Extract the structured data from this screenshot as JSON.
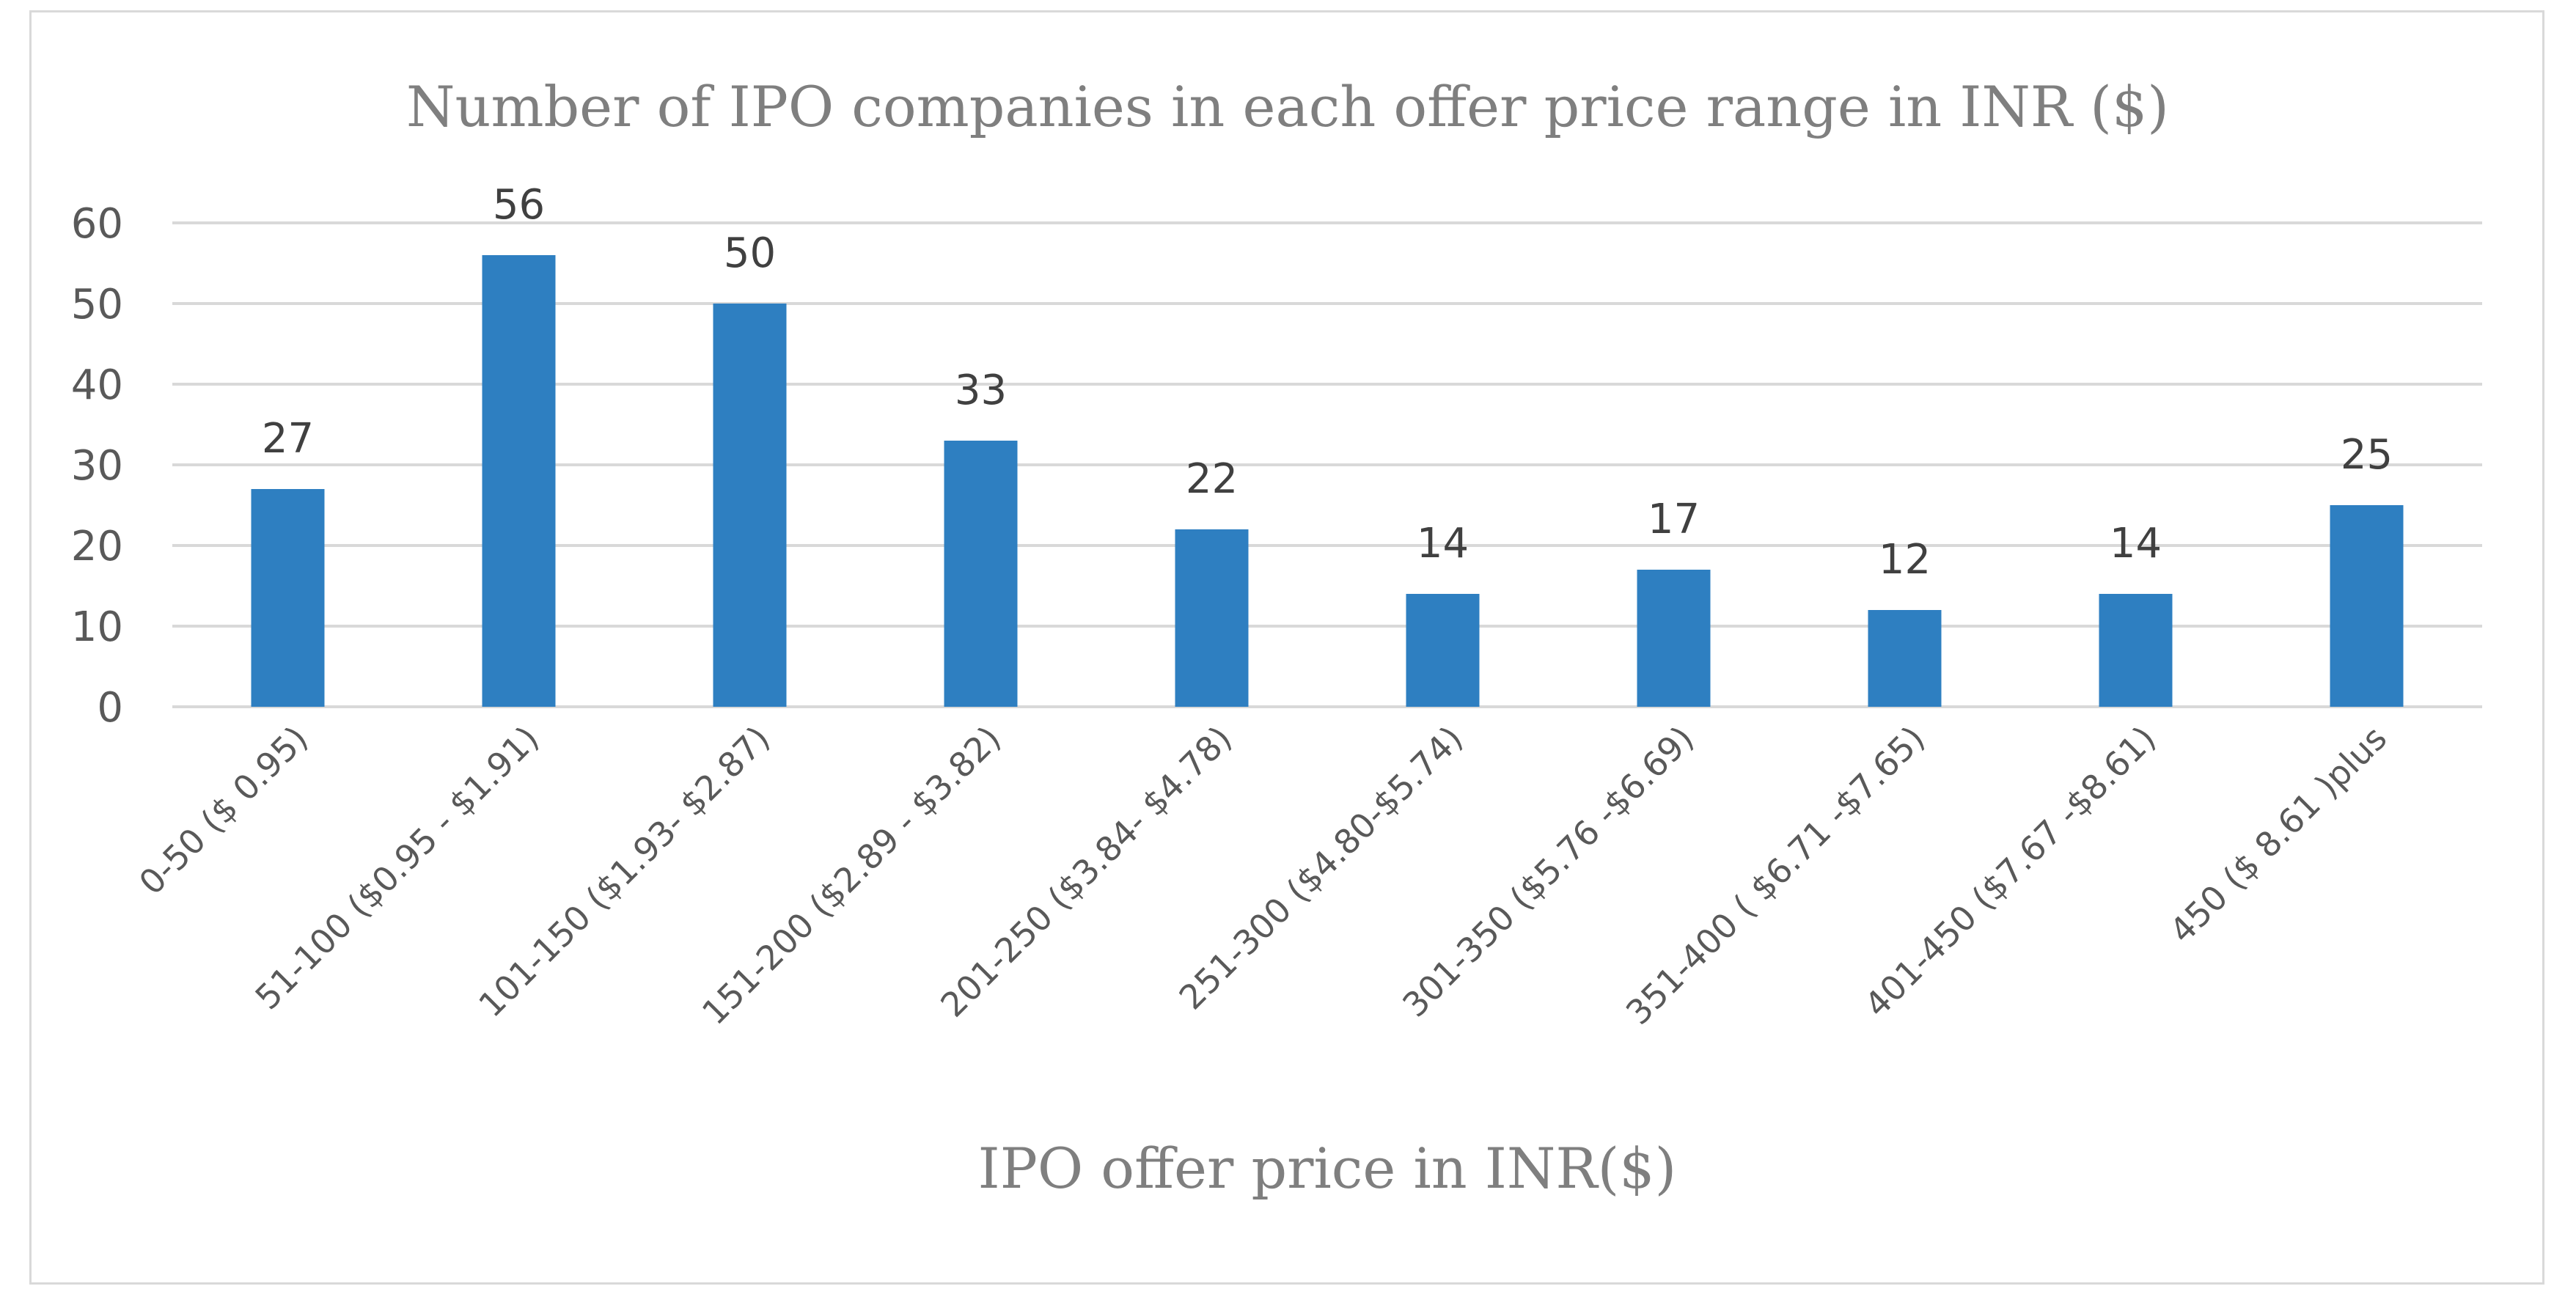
{
  "chart_data": {
    "type": "bar",
    "title": "Number of IPO companies in each offer price range in INR ($)",
    "xlabel": "IPO offer price in INR($)",
    "ylabel": "",
    "categories": [
      "0-50 ($ 0.95)",
      "51-100 ($0.95 - $1.91)",
      "101-150 ($1.93- $2.87)",
      "151-200 ($2.89 - $3.82)",
      "201-250 ($3.84- $4.78)",
      "251-300 ($4.80-$5.74)",
      "301-350 ($5.76 -$6.69)",
      "351-400 ( $6.71 -$7.65)",
      "401-450 ($7.67 -$8.61)",
      "450 ($ 8.61 )plus"
    ],
    "values": [
      27,
      56,
      50,
      33,
      22,
      14,
      17,
      12,
      14,
      25
    ],
    "data_labels": [
      "27",
      "56",
      "50",
      "33",
      "22",
      "14",
      "17",
      "12",
      "14",
      "25"
    ],
    "ylim": [
      0,
      60
    ],
    "yticks": [
      0,
      10,
      20,
      30,
      40,
      50,
      60
    ],
    "ytick_labels": [
      "0",
      "10",
      "20",
      "30",
      "40",
      "50",
      "60"
    ],
    "grid": true,
    "legend": "none",
    "bar_color": "#2e7fc1",
    "grid_color": "#d9d9d9"
  }
}
